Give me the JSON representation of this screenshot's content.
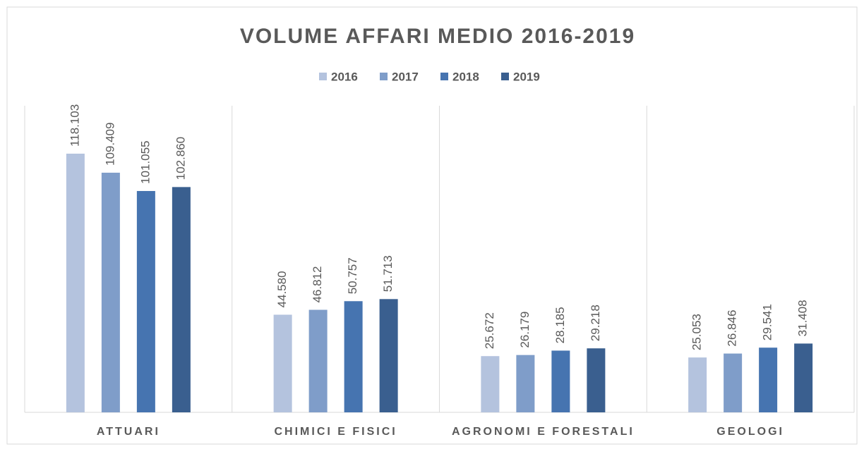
{
  "chart_data": {
    "type": "bar",
    "title": "VOLUME AFFARI MEDIO 2016-2019",
    "categories": [
      "ATTUARI",
      "CHIMICI E FISICI",
      "AGRONOMI E FORESTALI",
      "GEOLOGI"
    ],
    "series": [
      {
        "name": "2016",
        "color": "#b4c3de",
        "values": [
          118103,
          44580,
          25672,
          25053
        ],
        "value_labels": [
          "118.103",
          "44.580",
          "25.672",
          "25.053"
        ]
      },
      {
        "name": "2017",
        "color": "#7f9dc9",
        "values": [
          109409,
          46812,
          26179,
          26846
        ],
        "value_labels": [
          "109.409",
          "46.812",
          "26.179",
          "26.846"
        ]
      },
      {
        "name": "2018",
        "color": "#4674b0",
        "values": [
          101055,
          50757,
          28185,
          29541
        ],
        "value_labels": [
          "101.055",
          "50.757",
          "28.185",
          "29.541"
        ]
      },
      {
        "name": "2019",
        "color": "#3a5f8f",
        "values": [
          102860,
          51713,
          29218,
          31408
        ],
        "value_labels": [
          "102.860",
          "51.713",
          "29.218",
          "31.408"
        ]
      }
    ]
  }
}
